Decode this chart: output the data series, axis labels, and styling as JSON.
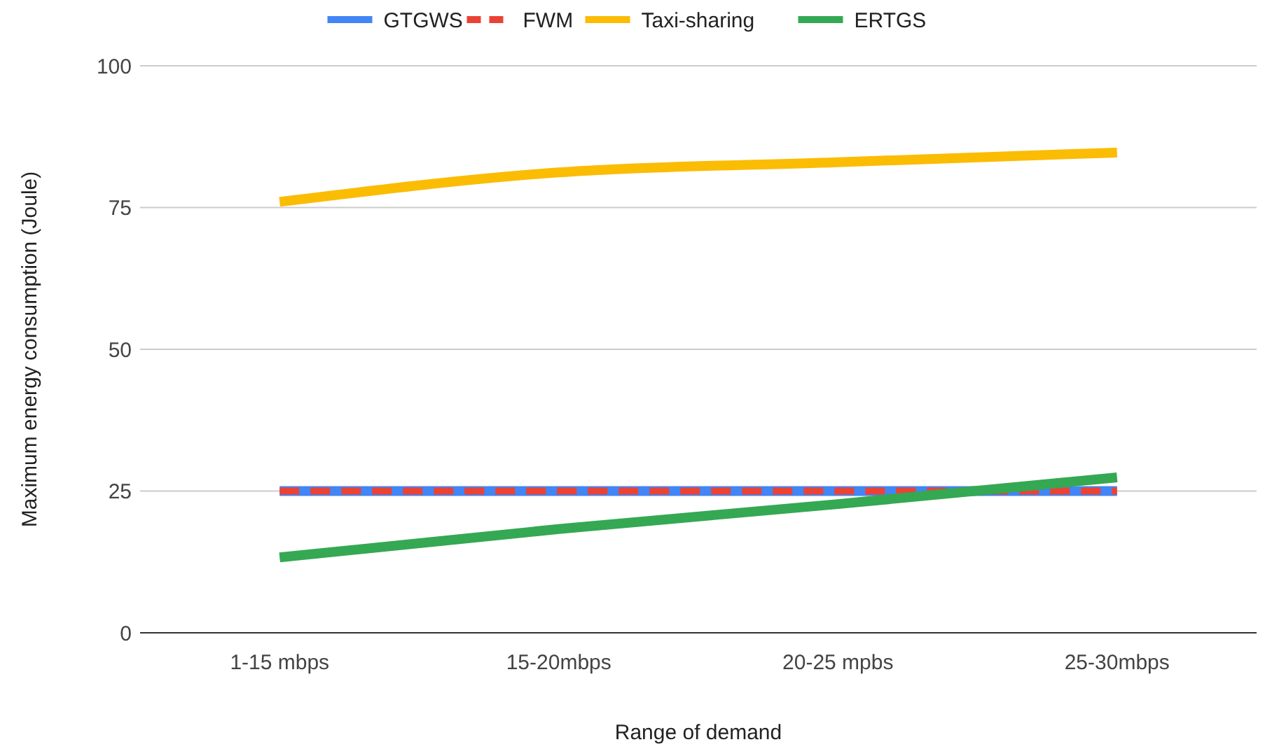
{
  "chart_data": {
    "type": "line",
    "xlabel": "Range of demand",
    "ylabel": "Maximum energy consumption (Joule)",
    "categories": [
      "1-15 mbps",
      "15-20mbps",
      "20-25 mpbs",
      "25-30mbps"
    ],
    "series": [
      {
        "name": "GTGWS",
        "color": "#4285f4",
        "values": [
          25,
          25,
          25,
          25
        ]
      },
      {
        "name": "FWM",
        "color": "#ea4335",
        "values": [
          25,
          25,
          25,
          25
        ],
        "line_style": "dashed"
      },
      {
        "name": "Taxi-sharing",
        "color": "#fbbc04",
        "values": [
          76,
          81.2,
          83,
          84.7
        ]
      },
      {
        "name": "ERTGS",
        "color": "#34a853",
        "values": [
          13.3,
          18.3,
          22.7,
          27.4
        ]
      }
    ],
    "ylim": [
      0,
      100
    ],
    "yticks": [
      0,
      25,
      50,
      75,
      100
    ],
    "grid": "y",
    "legend": "top",
    "marker": "none"
  }
}
